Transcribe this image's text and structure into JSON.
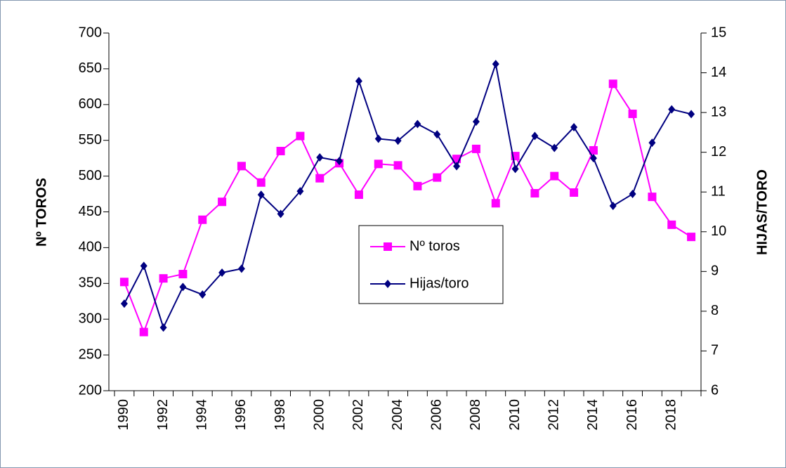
{
  "chart_data": {
    "type": "line",
    "y_label": "Nº TOROS",
    "y2_label": "HIJAS/TORO",
    "categories": [
      "1990",
      null,
      "1992",
      null,
      "1994",
      null,
      "1996",
      null,
      "1998",
      null,
      "2000",
      null,
      "2002",
      null,
      "2004",
      null,
      "2006",
      null,
      "2008",
      null,
      "2010",
      null,
      "2012",
      null,
      "2014",
      null,
      "2016",
      null,
      "2018",
      null
    ],
    "series": [
      {
        "name": "Nº toros",
        "color": "#ff00ff",
        "marker": "square",
        "values": [
          352,
          282,
          357,
          363,
          439,
          464,
          514,
          491,
          535,
          556,
          497,
          518,
          474,
          517,
          515,
          486,
          498,
          524,
          538,
          462,
          528,
          476,
          500,
          477,
          536,
          629,
          587,
          471,
          432,
          415
        ]
      },
      {
        "name": "Hijas/toro",
        "color": "#000080",
        "marker": "diamond",
        "axis": "y2",
        "values": [
          8.19,
          9.14,
          7.59,
          8.61,
          8.42,
          8.97,
          9.07,
          10.93,
          10.45,
          11.02,
          11.87,
          11.78,
          13.79,
          12.34,
          12.29,
          12.71,
          12.45,
          11.65,
          12.77,
          14.22,
          11.58,
          12.41,
          12.11,
          12.63,
          11.85,
          10.65,
          10.95,
          12.24,
          13.08,
          12.96
        ]
      }
    ],
    "ylim": [
      200,
      700
    ],
    "yticks": [
      200,
      250,
      300,
      350,
      400,
      450,
      500,
      550,
      600,
      650,
      700
    ],
    "y2lim": [
      6,
      15
    ],
    "y2ticks": [
      6,
      7,
      8,
      9,
      10,
      11,
      12,
      13,
      14,
      15
    ],
    "legend": "center"
  }
}
